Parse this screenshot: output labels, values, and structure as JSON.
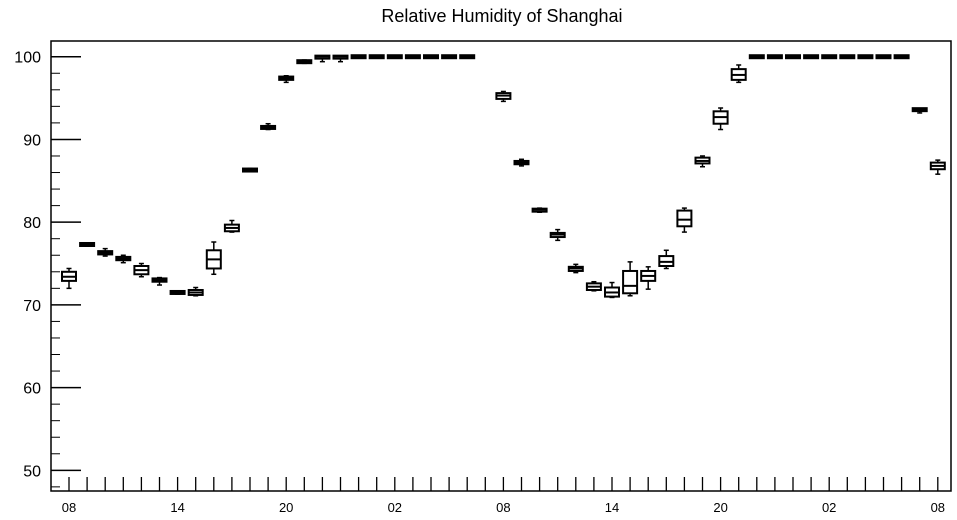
{
  "chart_data": {
    "type": "box",
    "title": "Relative Humidity of Shanghai",
    "xlabel": "",
    "ylabel": "",
    "ylim": [
      47.5,
      101.9
    ],
    "y_ticks": [
      50,
      60,
      70,
      80,
      90,
      100
    ],
    "y_tick_labels": [
      "50",
      "60",
      "70",
      "80",
      "90",
      "100"
    ],
    "x_tick_labels": [
      "08",
      "14",
      "20",
      "02",
      "08",
      "14",
      "20",
      "02",
      "08"
    ],
    "x_tick_label_hours": [
      0,
      6,
      12,
      18,
      24,
      30,
      36,
      42,
      48
    ],
    "grid": false,
    "series": [
      {
        "boxes": [
          {
            "hour": 0,
            "min": 72.0,
            "q1": 72.9,
            "median": 73.4,
            "q3": 74.0,
            "max": 74.4
          },
          {
            "hour": 1,
            "min": 77.1,
            "q1": 77.2,
            "median": 77.3,
            "q3": 77.4,
            "max": 77.5
          },
          {
            "hour": 2,
            "min": 75.9,
            "q1": 76.1,
            "median": 76.3,
            "q3": 76.5,
            "max": 76.8
          },
          {
            "hour": 3,
            "min": 75.1,
            "q1": 75.4,
            "median": 75.6,
            "q3": 75.8,
            "max": 76.0
          },
          {
            "hour": 4,
            "min": 73.4,
            "q1": 73.7,
            "median": 74.2,
            "q3": 74.7,
            "max": 75.0
          },
          {
            "hour": 5,
            "min": 72.4,
            "q1": 72.8,
            "median": 73.0,
            "q3": 73.2,
            "max": 73.3
          },
          {
            "hour": 6,
            "min": 71.3,
            "q1": 71.4,
            "median": 71.5,
            "q3": 71.6,
            "max": 71.7
          },
          {
            "hour": 7,
            "min": 71.1,
            "q1": 71.2,
            "median": 71.5,
            "q3": 71.8,
            "max": 72.1
          },
          {
            "hour": 8,
            "min": 73.7,
            "q1": 74.4,
            "median": 75.5,
            "q3": 76.6,
            "max": 77.6
          },
          {
            "hour": 9,
            "min": 78.8,
            "q1": 78.9,
            "median": 79.3,
            "q3": 79.7,
            "max": 80.2
          },
          {
            "hour": 10,
            "min": 86.1,
            "q1": 86.2,
            "median": 86.3,
            "q3": 86.4,
            "max": 86.5
          },
          {
            "hour": 11,
            "min": 91.2,
            "q1": 91.3,
            "median": 91.5,
            "q3": 91.6,
            "max": 91.9
          },
          {
            "hour": 12,
            "min": 96.9,
            "q1": 97.2,
            "median": 97.4,
            "q3": 97.6,
            "max": 97.7
          },
          {
            "hour": 13,
            "min": 99.2,
            "q1": 99.3,
            "median": 99.4,
            "q3": 99.5,
            "max": 99.6
          },
          {
            "hour": 14,
            "min": 99.4,
            "q1": 99.9,
            "median": 100.0,
            "q3": 100.0,
            "max": 100.0
          },
          {
            "hour": 15,
            "min": 99.4,
            "q1": 99.9,
            "median": 100.0,
            "q3": 100.0,
            "max": 100.0
          },
          {
            "hour": 16,
            "min": 100.0,
            "q1": 100.0,
            "median": 100.0,
            "q3": 100.0,
            "max": 100.0
          },
          {
            "hour": 17,
            "min": 100.0,
            "q1": 100.0,
            "median": 100.0,
            "q3": 100.0,
            "max": 100.0
          },
          {
            "hour": 18,
            "min": 100.0,
            "q1": 100.0,
            "median": 100.0,
            "q3": 100.0,
            "max": 100.0
          },
          {
            "hour": 19,
            "min": 100.0,
            "q1": 100.0,
            "median": 100.0,
            "q3": 100.0,
            "max": 100.0
          },
          {
            "hour": 20,
            "min": 100.0,
            "q1": 100.0,
            "median": 100.0,
            "q3": 100.0,
            "max": 100.0
          },
          {
            "hour": 21,
            "min": 100.0,
            "q1": 100.0,
            "median": 100.0,
            "q3": 100.0,
            "max": 100.0
          },
          {
            "hour": 22,
            "min": 100.0,
            "q1": 100.0,
            "median": 100.0,
            "q3": 100.0,
            "max": 100.0
          },
          {
            "hour": 24,
            "min": 94.6,
            "q1": 94.9,
            "median": 95.3,
            "q3": 95.6,
            "max": 95.8
          },
          {
            "hour": 25,
            "min": 86.8,
            "q1": 87.0,
            "median": 87.2,
            "q3": 87.4,
            "max": 87.6
          },
          {
            "hour": 26,
            "min": 81.2,
            "q1": 81.3,
            "median": 81.5,
            "q3": 81.6,
            "max": 81.7
          },
          {
            "hour": 27,
            "min": 77.8,
            "q1": 78.2,
            "median": 78.5,
            "q3": 78.7,
            "max": 79.1
          },
          {
            "hour": 28,
            "min": 73.9,
            "q1": 74.1,
            "median": 74.4,
            "q3": 74.6,
            "max": 74.9
          },
          {
            "hour": 29,
            "min": 71.7,
            "q1": 71.8,
            "median": 72.2,
            "q3": 72.6,
            "max": 72.8
          },
          {
            "hour": 30,
            "min": 70.9,
            "q1": 71.0,
            "median": 71.5,
            "q3": 72.1,
            "max": 72.7
          },
          {
            "hour": 31,
            "min": 71.1,
            "q1": 71.4,
            "median": 72.3,
            "q3": 74.1,
            "max": 75.2
          },
          {
            "hour": 32,
            "min": 71.9,
            "q1": 72.9,
            "median": 73.5,
            "q3": 74.1,
            "max": 74.6
          },
          {
            "hour": 33,
            "min": 74.4,
            "q1": 74.7,
            "median": 75.2,
            "q3": 75.9,
            "max": 76.6
          },
          {
            "hour": 34,
            "min": 78.8,
            "q1": 79.5,
            "median": 80.3,
            "q3": 81.4,
            "max": 81.7
          },
          {
            "hour": 35,
            "min": 86.7,
            "q1": 87.1,
            "median": 87.4,
            "q3": 87.8,
            "max": 88.0
          },
          {
            "hour": 36,
            "min": 91.2,
            "q1": 91.9,
            "median": 92.7,
            "q3": 93.4,
            "max": 93.8
          },
          {
            "hour": 37,
            "min": 96.9,
            "q1": 97.2,
            "median": 97.8,
            "q3": 98.5,
            "max": 99.0
          },
          {
            "hour": 38,
            "min": 100.0,
            "q1": 100.0,
            "median": 100.0,
            "q3": 100.0,
            "max": 100.0
          },
          {
            "hour": 39,
            "min": 100.0,
            "q1": 100.0,
            "median": 100.0,
            "q3": 100.0,
            "max": 100.0
          },
          {
            "hour": 40,
            "min": 100.0,
            "q1": 100.0,
            "median": 100.0,
            "q3": 100.0,
            "max": 100.0
          },
          {
            "hour": 41,
            "min": 100.0,
            "q1": 100.0,
            "median": 100.0,
            "q3": 100.0,
            "max": 100.0
          },
          {
            "hour": 42,
            "min": 100.0,
            "q1": 100.0,
            "median": 100.0,
            "q3": 100.0,
            "max": 100.0
          },
          {
            "hour": 43,
            "min": 100.0,
            "q1": 100.0,
            "median": 100.0,
            "q3": 100.0,
            "max": 100.0
          },
          {
            "hour": 44,
            "min": 100.0,
            "q1": 100.0,
            "median": 100.0,
            "q3": 100.0,
            "max": 100.0
          },
          {
            "hour": 45,
            "min": 100.0,
            "q1": 100.0,
            "median": 100.0,
            "q3": 100.0,
            "max": 100.0
          },
          {
            "hour": 46,
            "min": 100.0,
            "q1": 100.0,
            "median": 100.0,
            "q3": 100.0,
            "max": 100.0
          },
          {
            "hour": 47,
            "min": 93.2,
            "q1": 93.5,
            "median": 93.6,
            "q3": 93.7,
            "max": 93.7
          },
          {
            "hour": 48,
            "min": 85.8,
            "q1": 86.4,
            "median": 86.8,
            "q3": 87.2,
            "max": 87.5
          }
        ]
      }
    ]
  }
}
